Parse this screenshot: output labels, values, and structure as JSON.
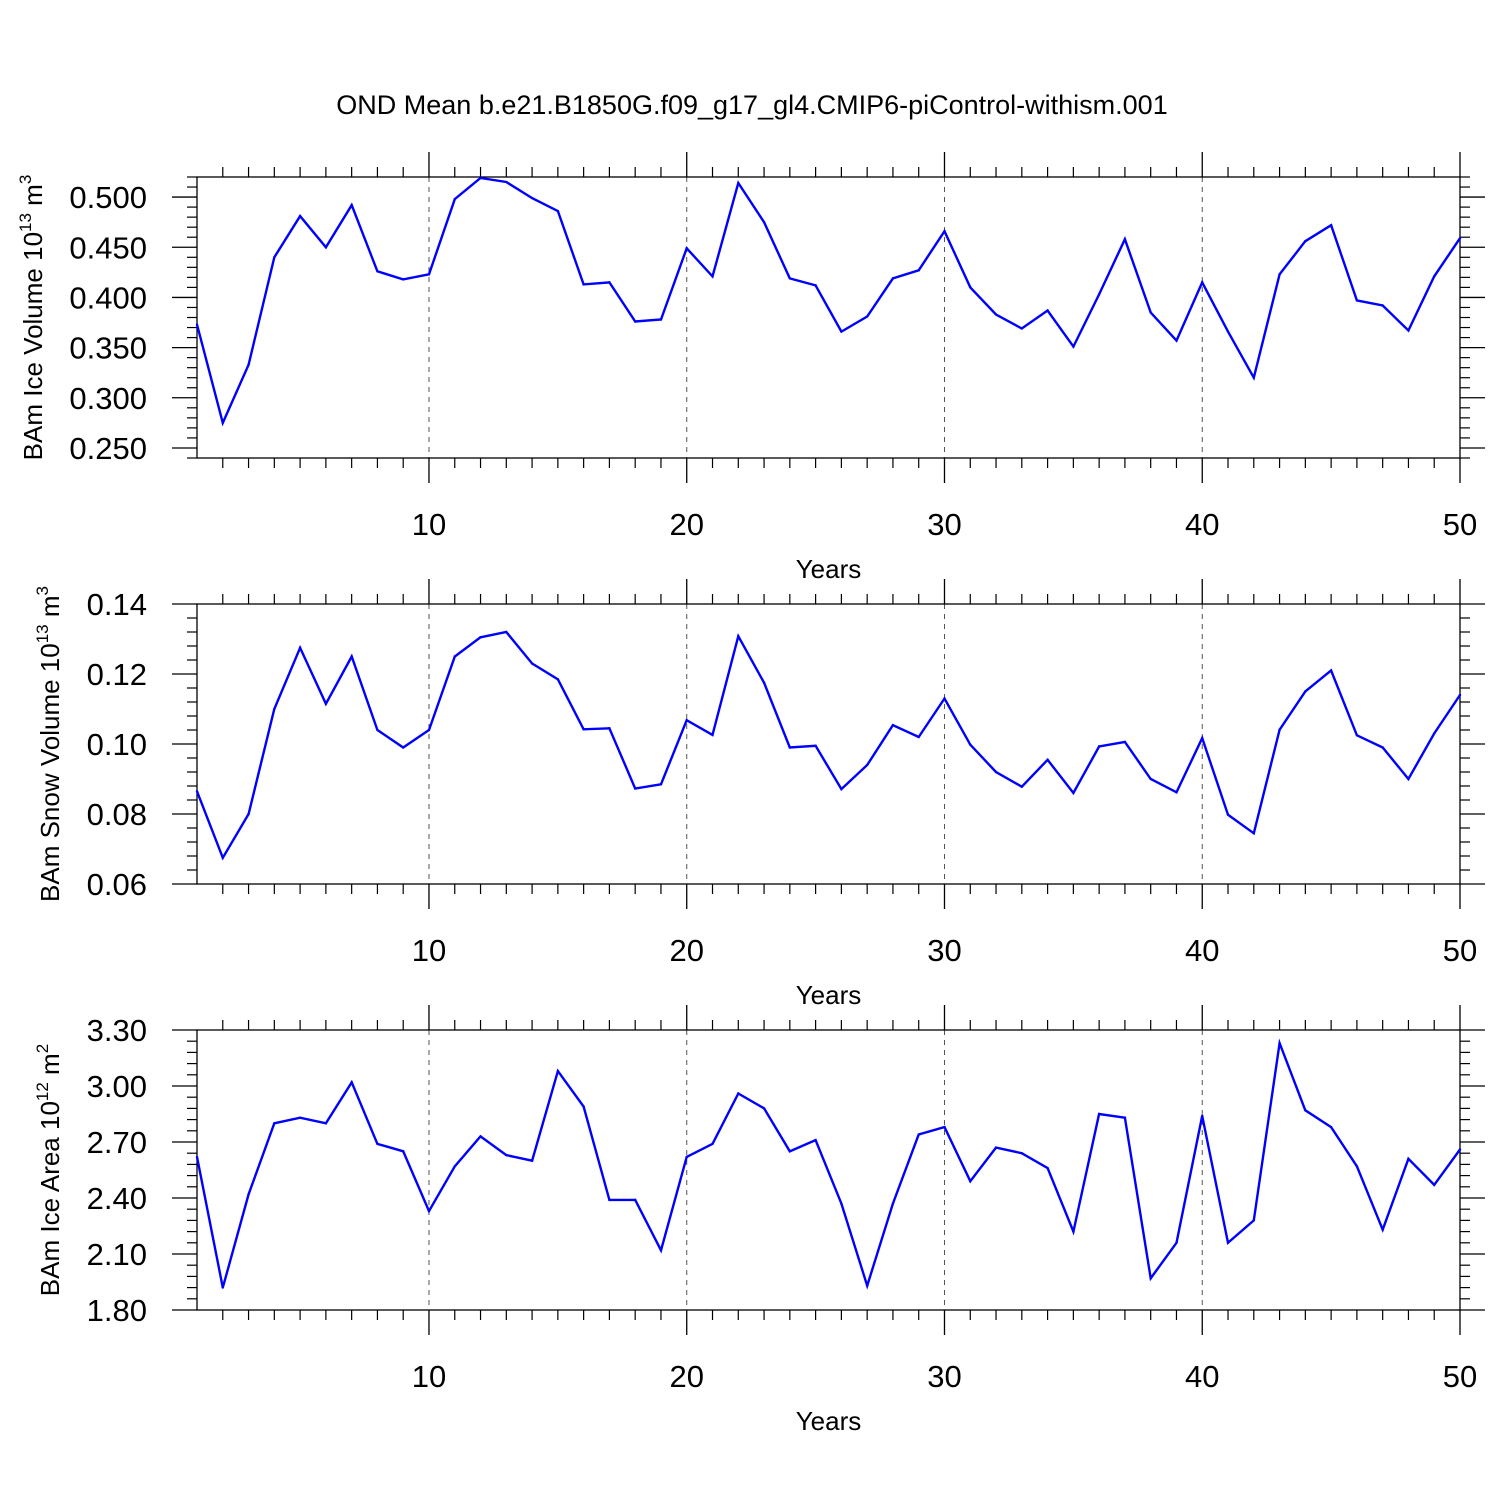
{
  "title": "OND Mean b.e21.B1850G.f09_g17_gl4.CMIP6-piControl-withism.001",
  "colors": {
    "line": "#0000ff",
    "axis": "#000000",
    "grid": "#555555"
  },
  "chart_data": [
    {
      "type": "line",
      "ylabel": {
        "main": "BAm Ice Volume 10",
        "exp": "13",
        "unit": " m",
        "unit_exp": "3"
      },
      "xlabel": "Years",
      "xlim": [
        1,
        50
      ],
      "ylim": [
        0.24,
        0.52
      ],
      "xticks": [
        10,
        20,
        30,
        40,
        50
      ],
      "xtick_labels": [
        "10",
        "20",
        "30",
        "40",
        "50"
      ],
      "yticks": [
        0.25,
        0.3,
        0.35,
        0.4,
        0.45,
        0.5
      ],
      "ytick_labels": [
        "0.250",
        "0.300",
        "0.350",
        "0.400",
        "0.450",
        "0.500"
      ],
      "grid": "vertical dashed at major x ticks",
      "series": [
        {
          "x": [
            1,
            2,
            3,
            4,
            5,
            6,
            7,
            8,
            9,
            10,
            11,
            12,
            13,
            14,
            15,
            16,
            17,
            18,
            19,
            20,
            21,
            22,
            23,
            24,
            25,
            26,
            27,
            28,
            29,
            30,
            31,
            32,
            33,
            34,
            35,
            36,
            37,
            38,
            39,
            40,
            41,
            42,
            43,
            44,
            45,
            46,
            47,
            48,
            49,
            50
          ],
          "values": [
            0.373,
            0.275,
            0.333,
            0.44,
            0.481,
            0.45,
            0.492,
            0.426,
            0.418,
            0.423,
            0.498,
            0.519,
            0.515,
            0.499,
            0.486,
            0.413,
            0.415,
            0.376,
            0.378,
            0.449,
            0.421,
            0.514,
            0.475,
            0.419,
            0.412,
            0.366,
            0.381,
            0.419,
            0.427,
            0.466,
            0.41,
            0.383,
            0.369,
            0.387,
            0.351,
            0.403,
            0.458,
            0.385,
            0.357,
            0.415,
            0.366,
            0.32,
            0.423,
            0.456,
            0.472,
            0.397,
            0.392,
            0.367,
            0.421,
            0.459
          ]
        }
      ]
    },
    {
      "type": "line",
      "ylabel": {
        "main": "BAm Snow Volume 10",
        "exp": "13",
        "unit": " m",
        "unit_exp": "3"
      },
      "xlabel": "Years",
      "xlim": [
        1,
        50
      ],
      "ylim": [
        0.06,
        0.14
      ],
      "xticks": [
        10,
        20,
        30,
        40,
        50
      ],
      "xtick_labels": [
        "10",
        "20",
        "30",
        "40",
        "50"
      ],
      "yticks": [
        0.06,
        0.08,
        0.1,
        0.12,
        0.14
      ],
      "ytick_labels": [
        "0.06",
        "0.08",
        "0.10",
        "0.12",
        "0.14"
      ],
      "grid": "vertical dashed at major x ticks",
      "series": [
        {
          "x": [
            1,
            2,
            3,
            4,
            5,
            6,
            7,
            8,
            9,
            10,
            11,
            12,
            13,
            14,
            15,
            16,
            17,
            18,
            19,
            20,
            21,
            22,
            23,
            24,
            25,
            26,
            27,
            28,
            29,
            30,
            31,
            32,
            33,
            34,
            35,
            36,
            37,
            38,
            39,
            40,
            41,
            42,
            43,
            44,
            45,
            46,
            47,
            48,
            49,
            50
          ],
          "values": [
            0.0865,
            0.0675,
            0.08,
            0.11,
            0.1275,
            0.1115,
            0.125,
            0.104,
            0.099,
            0.104,
            0.125,
            0.1305,
            0.132,
            0.123,
            0.1185,
            0.1042,
            0.1045,
            0.0873,
            0.0885,
            0.1068,
            0.1026,
            0.1308,
            0.1175,
            0.099,
            0.0995,
            0.0871,
            0.094,
            0.1054,
            0.102,
            0.113,
            0.0998,
            0.092,
            0.0878,
            0.0955,
            0.086,
            0.0993,
            0.1006,
            0.09,
            0.0862,
            0.1017,
            0.0798,
            0.0745,
            0.1041,
            0.115,
            0.121,
            0.1025,
            0.099,
            0.09,
            0.103,
            0.114
          ]
        }
      ]
    },
    {
      "type": "line",
      "ylabel": {
        "main": "BAm Ice Area 10",
        "exp": "12",
        "unit": " m",
        "unit_exp": "2"
      },
      "xlabel": "Years",
      "xlim": [
        1,
        50
      ],
      "ylim": [
        1.8,
        3.3
      ],
      "xticks": [
        10,
        20,
        30,
        40,
        50
      ],
      "xtick_labels": [
        "10",
        "20",
        "30",
        "40",
        "50"
      ],
      "yticks": [
        1.8,
        2.1,
        2.4,
        2.7,
        3.0,
        3.3
      ],
      "ytick_labels": [
        "1.80",
        "2.10",
        "2.40",
        "2.70",
        "3.00",
        "3.30"
      ],
      "grid": "vertical dashed at major x ticks",
      "series": [
        {
          "x": [
            1,
            2,
            3,
            4,
            5,
            6,
            7,
            8,
            9,
            10,
            11,
            12,
            13,
            14,
            15,
            16,
            17,
            18,
            19,
            20,
            21,
            22,
            23,
            24,
            25,
            26,
            27,
            28,
            29,
            30,
            31,
            32,
            33,
            34,
            35,
            36,
            37,
            38,
            39,
            40,
            41,
            42,
            43,
            44,
            45,
            46,
            47,
            48,
            49,
            50
          ],
          "values": [
            2.62,
            1.92,
            2.42,
            2.8,
            2.83,
            2.8,
            3.02,
            2.69,
            2.65,
            2.33,
            2.57,
            2.73,
            2.63,
            2.6,
            3.08,
            2.89,
            2.39,
            2.39,
            2.12,
            2.62,
            2.69,
            2.96,
            2.88,
            2.65,
            2.71,
            2.37,
            1.93,
            2.37,
            2.74,
            2.78,
            2.49,
            2.67,
            2.64,
            2.56,
            2.22,
            2.85,
            2.83,
            1.97,
            2.16,
            2.84,
            2.16,
            2.28,
            3.23,
            2.87,
            2.78,
            2.57,
            2.23,
            2.61,
            2.47,
            2.66
          ]
        }
      ]
    }
  ]
}
